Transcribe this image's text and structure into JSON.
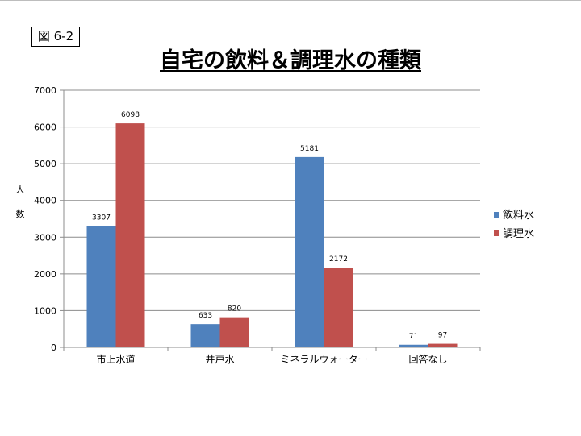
{
  "figure_label": "図 6-2",
  "chart_data": {
    "type": "bar",
    "title": "自宅の飲料＆調理水の種類",
    "ylabel": "人 数",
    "xlabel": "",
    "categories": [
      "市上水道",
      "井戸水",
      "ミネラルウォーター",
      "回答なし"
    ],
    "series": [
      {
        "name": "飲料水",
        "values": [
          3307,
          633,
          5181,
          71
        ],
        "color": "#4f81bd"
      },
      {
        "name": "調理水",
        "values": [
          6098,
          820,
          2172,
          97
        ],
        "color": "#c0504d"
      }
    ],
    "ylim": [
      0,
      7000
    ],
    "yticks": [
      0,
      1000,
      2000,
      3000,
      4000,
      5000,
      6000,
      7000
    ],
    "grid": true,
    "legend": "right"
  }
}
